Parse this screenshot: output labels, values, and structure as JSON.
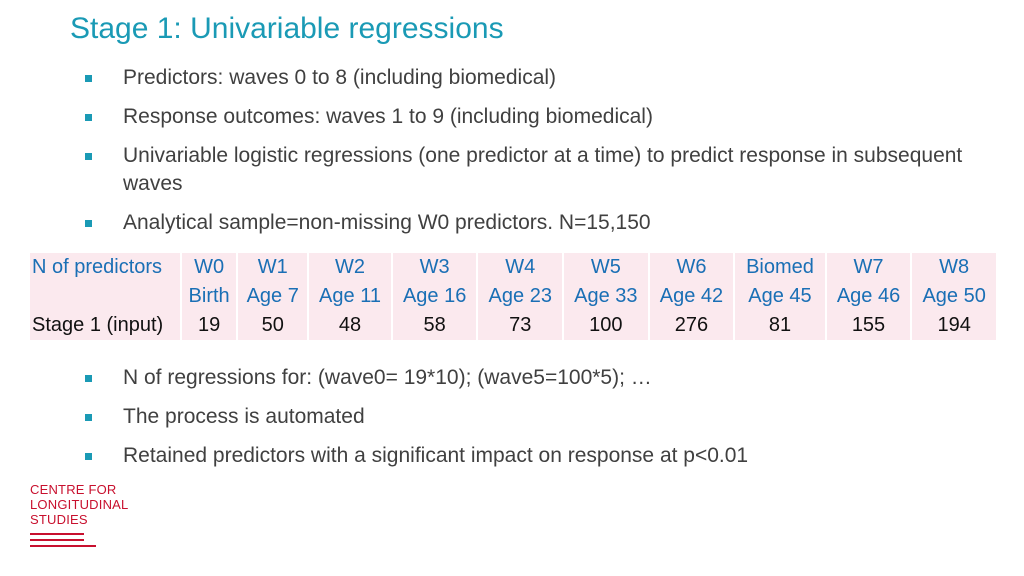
{
  "title": "Stage 1: Univariable regressions",
  "bullets_top": [
    "Predictors: waves 0 to 8 (including biomedical)",
    "Response outcomes: waves 1 to 9 (including biomedical)",
    "Univariable logistic regressions (one predictor at a time) to predict response in subsequent waves",
    "Analytical sample=non-missing W0 predictors. N=15,150"
  ],
  "table": {
    "row_labels": [
      "N of predictors",
      "",
      "Stage 1 (input)"
    ],
    "waves": [
      "W0",
      "W1",
      "W2",
      "W3",
      "W4",
      "W5",
      "W6",
      "Biomed",
      "W7",
      "W8"
    ],
    "ages": [
      "Birth",
      "Age 7",
      "Age 11",
      "Age 16",
      "Age 23",
      "Age 33",
      "Age 42",
      "Age 45",
      "Age 46",
      "Age 50"
    ],
    "counts": [
      "19",
      "50",
      "48",
      "58",
      "73",
      "100",
      "276",
      "81",
      "155",
      "194"
    ]
  },
  "bullets_bottom": [
    "N of regressions for: (wave0= 19*10); (wave5=100*5); …",
    "The process is automated",
    "Retained predictors with a significant impact on response at p<0.01"
  ],
  "logo": {
    "lines": [
      "CENTRE FOR",
      "LONGITUDINAL",
      "STUDIES"
    ],
    "color": "#c8102e"
  },
  "colors": {
    "accent": "#1a9ab5",
    "table_fill": "#fbe9ee"
  }
}
